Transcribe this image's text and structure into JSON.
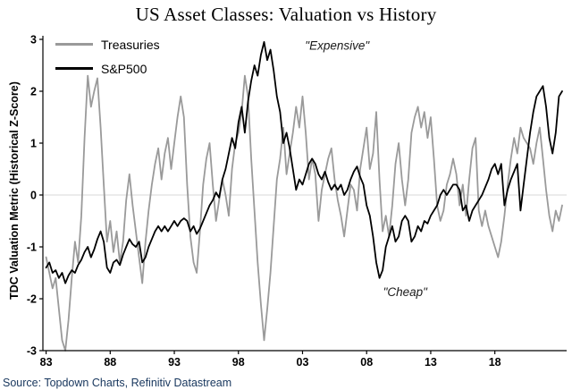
{
  "title": "US Asset Classes: Valuation vs History",
  "source": "Source: Topdown Charts, Refinitiv Datastream",
  "colors": {
    "treasuries": "#9a9a9a",
    "sp500": "#000000",
    "zero_line": "#d9d9d9",
    "axis": "#000000",
    "source_text": "#17365d",
    "annotation_text": "#1a1a1a"
  },
  "chart_data": {
    "type": "line",
    "title": "US Asset Classes: Valuation vs History",
    "xlabel": "",
    "ylabel": "TDC Valuation Metric (Historical Z-Score)",
    "ylim": [
      -3,
      3
    ],
    "grid": "zero-line-only",
    "legend_position": "top-left-inside",
    "x_start": 1983.0,
    "x_step": 0.25,
    "x_tick_values": [
      1983,
      1988,
      1993,
      1998,
      2003,
      2008,
      2013,
      2018
    ],
    "x_tick_labels": [
      "83",
      "88",
      "93",
      "98",
      "03",
      "08",
      "13",
      "18"
    ],
    "y_ticks": [
      -3,
      -2,
      -1,
      0,
      1,
      2,
      3
    ],
    "annotations": [
      {
        "text": "\"Expensive\"",
        "x": 2005.7,
        "y": 2.8
      },
      {
        "text": "\"Cheap\"",
        "x": 2011.0,
        "y": -1.95
      }
    ],
    "series": [
      {
        "name": "Treasuries",
        "color": "#9a9a9a",
        "width": 1.8,
        "values": [
          -1.2,
          -1.5,
          -1.8,
          -1.6,
          -2.2,
          -2.8,
          -3.0,
          -2.4,
          -1.6,
          -0.9,
          -1.3,
          -0.4,
          1.1,
          2.3,
          1.7,
          2.0,
          2.25,
          1.3,
          0.2,
          -0.9,
          -0.5,
          -1.1,
          -0.7,
          -1.3,
          -0.9,
          -0.1,
          0.4,
          -0.2,
          -0.7,
          -1.2,
          -1.7,
          -0.9,
          -0.3,
          0.2,
          0.6,
          0.9,
          0.3,
          0.8,
          1.1,
          0.5,
          1.0,
          1.5,
          1.9,
          1.5,
          0.2,
          -0.8,
          -1.3,
          -1.5,
          -0.7,
          0.2,
          0.7,
          1.0,
          0.2,
          -0.5,
          -0.1,
          0.3,
          0.0,
          -0.4,
          0.5,
          1.0,
          1.2,
          1.6,
          2.3,
          1.9,
          0.7,
          -0.3,
          -1.3,
          -2.1,
          -2.8,
          -2.2,
          -1.5,
          -0.6,
          0.3,
          0.7,
          1.3,
          0.4,
          0.8,
          1.2,
          1.7,
          1.3,
          1.9,
          1.2,
          0.3,
          0.7,
          0.4,
          -0.5,
          0.1,
          0.4,
          0.7,
          0.9,
          0.3,
          -0.1,
          -0.4,
          -0.8,
          -0.3,
          0.2,
          0.1,
          -0.3,
          0.5,
          0.9,
          1.3,
          0.5,
          0.8,
          1.6,
          0.3,
          -0.7,
          -0.4,
          -0.8,
          -0.2,
          0.6,
          1.0,
          0.3,
          -0.2,
          0.3,
          1.2,
          1.5,
          1.7,
          1.3,
          1.6,
          1.1,
          1.5,
          0.7,
          -0.2,
          -0.5,
          -0.3,
          0.2,
          0.4,
          0.7,
          0.4,
          -0.2,
          0.2,
          -0.4,
          0.3,
          0.9,
          1.1,
          -0.3,
          -0.6,
          -0.3,
          -0.6,
          -0.8,
          -1.0,
          -1.2,
          -0.9,
          -0.4,
          0.2,
          0.7,
          1.1,
          0.8,
          1.3,
          1.1,
          1.0,
          0.9,
          0.6,
          1.0,
          1.3,
          0.7,
          0.1,
          -0.4,
          -0.7,
          -0.3,
          -0.5,
          -0.2
        ]
      },
      {
        "name": "S&P500",
        "color": "#000000",
        "width": 1.8,
        "values": [
          -1.4,
          -1.3,
          -1.5,
          -1.45,
          -1.6,
          -1.5,
          -1.7,
          -1.55,
          -1.45,
          -1.5,
          -1.35,
          -1.25,
          -1.1,
          -1.0,
          -1.2,
          -1.05,
          -0.85,
          -0.7,
          -0.9,
          -1.4,
          -1.5,
          -1.3,
          -1.25,
          -1.35,
          -1.15,
          -1.0,
          -0.85,
          -0.95,
          -1.0,
          -0.9,
          -1.3,
          -1.2,
          -1.0,
          -0.85,
          -0.7,
          -0.6,
          -0.7,
          -0.6,
          -0.7,
          -0.6,
          -0.5,
          -0.6,
          -0.5,
          -0.45,
          -0.5,
          -0.7,
          -0.6,
          -0.75,
          -0.65,
          -0.5,
          -0.35,
          -0.2,
          -0.1,
          0.05,
          -0.05,
          0.3,
          0.5,
          0.8,
          1.1,
          0.9,
          1.4,
          1.7,
          1.2,
          1.8,
          2.2,
          2.5,
          2.3,
          2.7,
          2.95,
          2.6,
          2.8,
          2.4,
          1.9,
          1.6,
          1.0,
          1.2,
          0.9,
          0.5,
          0.1,
          0.3,
          0.2,
          0.4,
          0.6,
          0.7,
          0.6,
          0.4,
          0.3,
          0.45,
          0.25,
          0.1,
          0.2,
          0.1,
          0.2,
          0.0,
          0.1,
          0.3,
          0.45,
          0.55,
          0.35,
          0.2,
          -0.2,
          -0.4,
          -0.8,
          -1.3,
          -1.6,
          -1.45,
          -1.0,
          -0.8,
          -0.6,
          -0.9,
          -0.8,
          -0.5,
          -0.4,
          -0.5,
          -0.9,
          -0.8,
          -0.6,
          -0.7,
          -0.5,
          -0.55,
          -0.4,
          -0.3,
          -0.2,
          0.0,
          0.1,
          0.0,
          0.1,
          0.2,
          0.2,
          0.1,
          -0.3,
          -0.2,
          -0.5,
          -0.3,
          -0.2,
          -0.1,
          0.0,
          0.15,
          0.3,
          0.5,
          0.6,
          0.4,
          0.6,
          -0.2,
          0.1,
          0.3,
          0.45,
          0.6,
          -0.3,
          0.2,
          0.7,
          1.2,
          1.6,
          1.9,
          2.0,
          2.1,
          1.7,
          1.1,
          0.8,
          1.2,
          1.9,
          2.0
        ]
      }
    ]
  }
}
